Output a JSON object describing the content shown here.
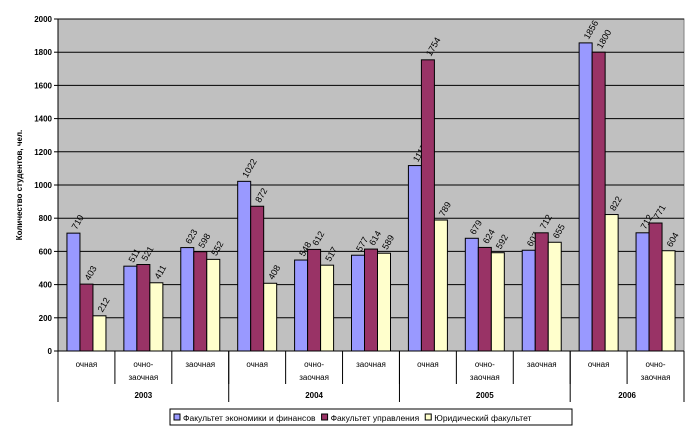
{
  "chart_data": {
    "type": "bar",
    "title": "",
    "xlabel": "",
    "ylabel": "Количество студентов, чел.",
    "ylim": [
      0,
      2000
    ],
    "yticks": [
      0,
      200,
      400,
      600,
      800,
      1000,
      1200,
      1400,
      1600,
      1800,
      2000
    ],
    "grid": true,
    "legend_placement": "bottom",
    "plot_background": "#c0c0c0",
    "categories": [
      "очная",
      "очно-заочная",
      "заочная",
      "очная",
      "очно-заочная",
      "заочная",
      "очная",
      "очно-заочная",
      "заочная",
      "очная",
      "очно-заочная"
    ],
    "groups": [
      {
        "label": "2003",
        "span": 3
      },
      {
        "label": "2004",
        "span": 3
      },
      {
        "label": "2005",
        "span": 3
      },
      {
        "label": "2006",
        "span": 2
      }
    ],
    "series": [
      {
        "name": "Факультет экономики и финансов",
        "color": "#9999ff",
        "values": [
          710,
          511,
          623,
          1022,
          548,
          577,
          1117,
          679,
          607,
          1856,
          712
        ]
      },
      {
        "name": "Факультет управления",
        "color": "#993366",
        "values": [
          403,
          521,
          598,
          872,
          612,
          614,
          1754,
          624,
          712,
          1800,
          771
        ]
      },
      {
        "name": "Юридический факультет",
        "color": "#ffffcc",
        "values": [
          212,
          411,
          552,
          408,
          517,
          589,
          789,
          592,
          655,
          822,
          604
        ]
      }
    ]
  }
}
